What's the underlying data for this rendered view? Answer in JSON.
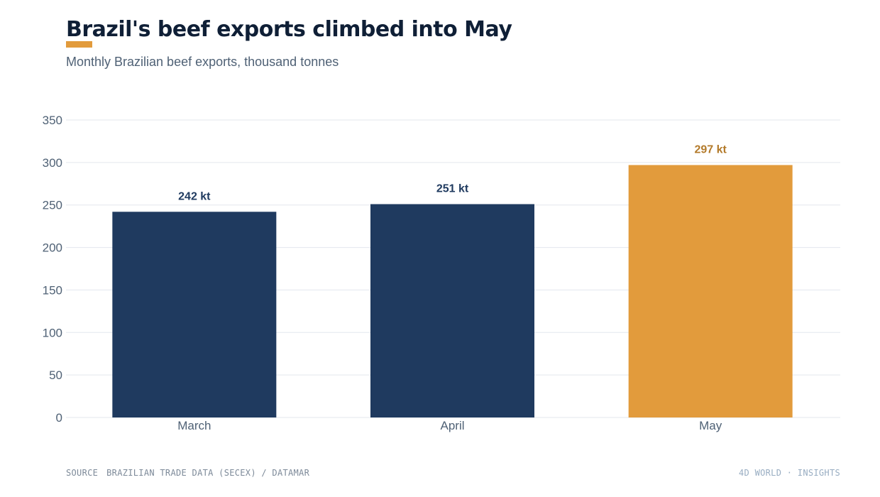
{
  "header": {
    "title": "Brazil's beef exports climbed into May",
    "subtitle": "Monthly Brazilian beef exports, thousand tonnes"
  },
  "footer": {
    "source_label": "SOURCE",
    "source_text": "BRAZILIAN TRADE DATA (SECEX) / DATAMAR",
    "brand": "4D WORLD · INSIGHTS"
  },
  "colors": {
    "base_bar": "#1f3a5f",
    "highlight_bar": "#e29b3c",
    "base_label": "#1f3a5f",
    "highlight_label": "#b37a2a",
    "accent": "#e29b3c",
    "grid": "#e3e7ee",
    "tick_text": "#4f6175"
  },
  "chart_data": {
    "type": "bar",
    "title": "Brazil's beef exports climbed into May",
    "subtitle": "Monthly Brazilian beef exports, thousand tonnes",
    "categories": [
      "March",
      "April",
      "May"
    ],
    "values": [
      242,
      251,
      297
    ],
    "data_labels": [
      "242 kt",
      "251 kt",
      "297 kt"
    ],
    "highlight_index": 2,
    "ylim": [
      0,
      350
    ],
    "yticks": [
      0,
      50,
      100,
      150,
      200,
      250,
      300,
      350
    ],
    "grid": true,
    "legend": "none",
    "xlabel": "",
    "ylabel": ""
  }
}
